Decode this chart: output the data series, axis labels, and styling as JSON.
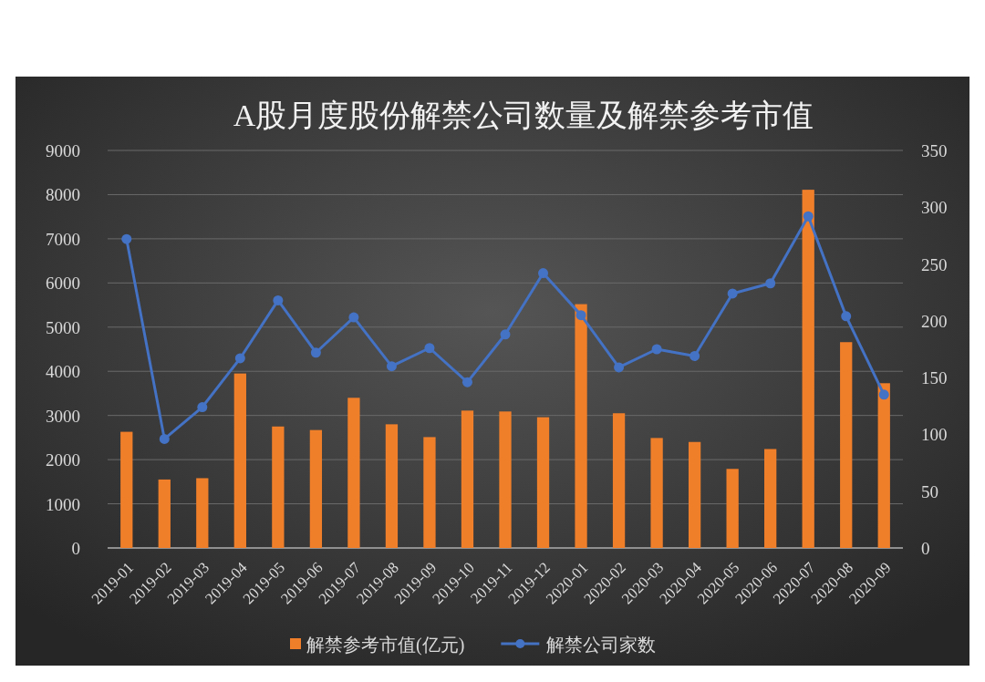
{
  "chart_data": {
    "type": "bar",
    "title": "A股月度股份解禁公司数量及解禁参考市值",
    "categories": [
      "2019-01",
      "2019-02",
      "2019-03",
      "2019-04",
      "2019-05",
      "2019-06",
      "2019-07",
      "2019-08",
      "2019-09",
      "2019-10",
      "2019-11",
      "2019-12",
      "2020-01",
      "2020-02",
      "2020-03",
      "2020-04",
      "2020-05",
      "2020-06",
      "2020-07",
      "2020-08",
      "2020-09"
    ],
    "series": [
      {
        "name": "解禁参考市值(亿元)",
        "color": "#f07f2a",
        "values": [
          2630,
          1550,
          1580,
          3950,
          2750,
          2670,
          3400,
          2800,
          2510,
          3110,
          3090,
          2960,
          5520,
          3050,
          2490,
          2400,
          1790,
          2240,
          8110,
          4660,
          3730
        ]
      },
      {
        "name": "解禁公司家数",
        "type": "line",
        "axis": "y2",
        "marker": "circle",
        "color": "#4472c4",
        "values": [
          272,
          96,
          124,
          167,
          218,
          172,
          203,
          160,
          176,
          146,
          188,
          242,
          205,
          159,
          175,
          169,
          224,
          233,
          292,
          204,
          135
        ]
      }
    ],
    "ylim": [
      0,
      9000
    ],
    "yticks": [
      0,
      1000,
      2000,
      3000,
      4000,
      5000,
      6000,
      7000,
      8000,
      9000
    ],
    "y2lim": [
      0,
      350
    ],
    "y2ticks": [
      0,
      50,
      100,
      150,
      200,
      250,
      300,
      350
    ],
    "grid": "y",
    "legend": "bottom"
  }
}
